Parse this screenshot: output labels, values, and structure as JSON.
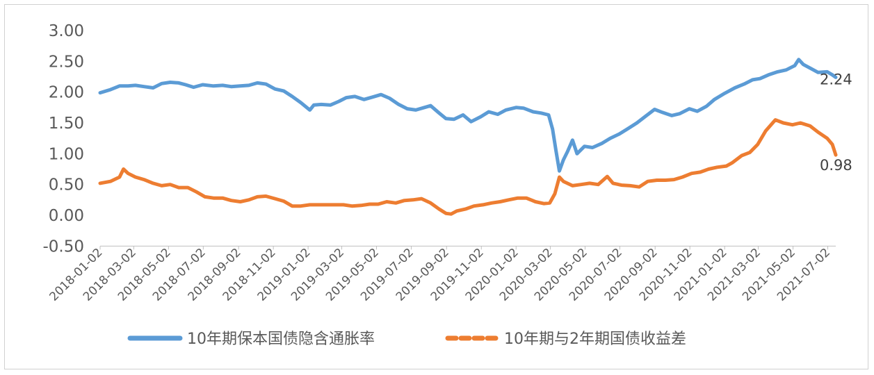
{
  "chart_data": {
    "type": "line",
    "title": "",
    "xlabel": "",
    "ylabel": "",
    "ylim": [
      -0.5,
      3.0
    ],
    "yticks": [
      "3.00",
      "2.50",
      "2.00",
      "1.50",
      "1.00",
      "0.50",
      "0.00",
      "-0.50"
    ],
    "xticks": [
      "2018-01-02",
      "2018-03-02",
      "2018-05-02",
      "2018-07-02",
      "2018-09-02",
      "2018-11-02",
      "2019-01-02",
      "2019-03-02",
      "2019-05-02",
      "2019-07-02",
      "2019-09-02",
      "2019-11-02",
      "2020-01-02",
      "2020-03-02",
      "2020-05-02",
      "2020-07-02",
      "2020-09-02",
      "2020-11-02",
      "2021-01-02",
      "2021-03-02",
      "2021-05-02",
      "2021-07-02"
    ],
    "grid": false,
    "legend_position": "bottom",
    "series": [
      {
        "name": "10年期保本国债隐含通胀率",
        "color": "#5B9BD5",
        "style": "solid",
        "end_label": "2.24",
        "points": [
          [
            "2018-01-02",
            1.99
          ],
          [
            "2018-01-20",
            2.04
          ],
          [
            "2018-02-05",
            2.1
          ],
          [
            "2018-02-20",
            2.1
          ],
          [
            "2018-03-05",
            2.11
          ],
          [
            "2018-03-20",
            2.09
          ],
          [
            "2018-04-05",
            2.07
          ],
          [
            "2018-04-20",
            2.14
          ],
          [
            "2018-05-05",
            2.16
          ],
          [
            "2018-05-20",
            2.15
          ],
          [
            "2018-06-01",
            2.12
          ],
          [
            "2018-06-15",
            2.08
          ],
          [
            "2018-07-01",
            2.12
          ],
          [
            "2018-07-20",
            2.1
          ],
          [
            "2018-08-05",
            2.11
          ],
          [
            "2018-08-20",
            2.09
          ],
          [
            "2018-09-05",
            2.1
          ],
          [
            "2018-09-20",
            2.11
          ],
          [
            "2018-10-05",
            2.15
          ],
          [
            "2018-10-20",
            2.13
          ],
          [
            "2018-11-05",
            2.05
          ],
          [
            "2018-11-20",
            2.02
          ],
          [
            "2018-12-05",
            1.93
          ],
          [
            "2018-12-20",
            1.83
          ],
          [
            "2019-01-05",
            1.71
          ],
          [
            "2019-01-12",
            1.79
          ],
          [
            "2019-01-25",
            1.8
          ],
          [
            "2019-02-10",
            1.79
          ],
          [
            "2019-02-25",
            1.85
          ],
          [
            "2019-03-10",
            1.91
          ],
          [
            "2019-03-25",
            1.93
          ],
          [
            "2019-04-10",
            1.88
          ],
          [
            "2019-04-25",
            1.92
          ],
          [
            "2019-05-10",
            1.96
          ],
          [
            "2019-05-25",
            1.9
          ],
          [
            "2019-06-10",
            1.8
          ],
          [
            "2019-06-25",
            1.73
          ],
          [
            "2019-07-10",
            1.71
          ],
          [
            "2019-07-25",
            1.75
          ],
          [
            "2019-08-05",
            1.78
          ],
          [
            "2019-08-20",
            1.66
          ],
          [
            "2019-09-01",
            1.57
          ],
          [
            "2019-09-15",
            1.56
          ],
          [
            "2019-10-01",
            1.63
          ],
          [
            "2019-10-15",
            1.52
          ],
          [
            "2019-11-01",
            1.6
          ],
          [
            "2019-11-15",
            1.68
          ],
          [
            "2019-12-01",
            1.64
          ],
          [
            "2019-12-15",
            1.71
          ],
          [
            "2020-01-02",
            1.75
          ],
          [
            "2020-01-15",
            1.74
          ],
          [
            "2020-02-01",
            1.68
          ],
          [
            "2020-02-15",
            1.66
          ],
          [
            "2020-02-28",
            1.63
          ],
          [
            "2020-03-06",
            1.4
          ],
          [
            "2020-03-12",
            1.05
          ],
          [
            "2020-03-18",
            0.72
          ],
          [
            "2020-03-25",
            0.9
          ],
          [
            "2020-04-01",
            1.03
          ],
          [
            "2020-04-10",
            1.22
          ],
          [
            "2020-04-18",
            1.0
          ],
          [
            "2020-05-01",
            1.12
          ],
          [
            "2020-05-15",
            1.1
          ],
          [
            "2020-06-01",
            1.17
          ],
          [
            "2020-06-15",
            1.25
          ],
          [
            "2020-07-01",
            1.32
          ],
          [
            "2020-07-15",
            1.4
          ],
          [
            "2020-08-01",
            1.5
          ],
          [
            "2020-08-15",
            1.6
          ],
          [
            "2020-09-01",
            1.72
          ],
          [
            "2020-09-15",
            1.67
          ],
          [
            "2020-10-01",
            1.62
          ],
          [
            "2020-10-15",
            1.65
          ],
          [
            "2020-11-01",
            1.73
          ],
          [
            "2020-11-15",
            1.69
          ],
          [
            "2020-12-01",
            1.77
          ],
          [
            "2020-12-15",
            1.88
          ],
          [
            "2021-01-02",
            1.98
          ],
          [
            "2021-01-20",
            2.07
          ],
          [
            "2021-02-05",
            2.13
          ],
          [
            "2021-02-20",
            2.2
          ],
          [
            "2021-03-05",
            2.22
          ],
          [
            "2021-03-20",
            2.28
          ],
          [
            "2021-04-05",
            2.33
          ],
          [
            "2021-04-20",
            2.36
          ],
          [
            "2021-05-05",
            2.43
          ],
          [
            "2021-05-12",
            2.53
          ],
          [
            "2021-05-20",
            2.45
          ],
          [
            "2021-06-01",
            2.39
          ],
          [
            "2021-06-15",
            2.32
          ],
          [
            "2021-07-01",
            2.33
          ],
          [
            "2021-07-10",
            2.28
          ],
          [
            "2021-07-16",
            2.24
          ]
        ]
      },
      {
        "name": "10年期与2年期国债收益差",
        "color": "#ED7D31",
        "style": "dashed",
        "end_label": "0.98",
        "points": [
          [
            "2018-01-02",
            0.52
          ],
          [
            "2018-01-20",
            0.55
          ],
          [
            "2018-02-05",
            0.62
          ],
          [
            "2018-02-12",
            0.75
          ],
          [
            "2018-02-20",
            0.68
          ],
          [
            "2018-03-05",
            0.62
          ],
          [
            "2018-03-20",
            0.58
          ],
          [
            "2018-04-05",
            0.52
          ],
          [
            "2018-04-20",
            0.48
          ],
          [
            "2018-05-05",
            0.5
          ],
          [
            "2018-05-20",
            0.45
          ],
          [
            "2018-06-05",
            0.45
          ],
          [
            "2018-06-20",
            0.38
          ],
          [
            "2018-07-05",
            0.3
          ],
          [
            "2018-07-20",
            0.28
          ],
          [
            "2018-08-05",
            0.28
          ],
          [
            "2018-08-20",
            0.24
          ],
          [
            "2018-09-05",
            0.22
          ],
          [
            "2018-09-20",
            0.25
          ],
          [
            "2018-10-05",
            0.3
          ],
          [
            "2018-10-20",
            0.31
          ],
          [
            "2018-11-05",
            0.27
          ],
          [
            "2018-11-20",
            0.23
          ],
          [
            "2018-12-05",
            0.15
          ],
          [
            "2018-12-20",
            0.15
          ],
          [
            "2019-01-05",
            0.17
          ],
          [
            "2019-01-20",
            0.17
          ],
          [
            "2019-02-05",
            0.17
          ],
          [
            "2019-02-20",
            0.17
          ],
          [
            "2019-03-05",
            0.17
          ],
          [
            "2019-03-20",
            0.15
          ],
          [
            "2019-04-05",
            0.16
          ],
          [
            "2019-04-20",
            0.18
          ],
          [
            "2019-05-05",
            0.18
          ],
          [
            "2019-05-20",
            0.22
          ],
          [
            "2019-06-05",
            0.2
          ],
          [
            "2019-06-20",
            0.24
          ],
          [
            "2019-07-05",
            0.25
          ],
          [
            "2019-07-20",
            0.27
          ],
          [
            "2019-08-05",
            0.2
          ],
          [
            "2019-08-20",
            0.1
          ],
          [
            "2019-09-01",
            0.03
          ],
          [
            "2019-09-10",
            0.02
          ],
          [
            "2019-09-20",
            0.07
          ],
          [
            "2019-10-05",
            0.1
          ],
          [
            "2019-10-20",
            0.15
          ],
          [
            "2019-11-05",
            0.17
          ],
          [
            "2019-11-20",
            0.2
          ],
          [
            "2019-12-05",
            0.22
          ],
          [
            "2019-12-20",
            0.25
          ],
          [
            "2020-01-05",
            0.28
          ],
          [
            "2020-01-20",
            0.28
          ],
          [
            "2020-02-05",
            0.22
          ],
          [
            "2020-02-20",
            0.19
          ],
          [
            "2020-03-01",
            0.2
          ],
          [
            "2020-03-10",
            0.35
          ],
          [
            "2020-03-18",
            0.62
          ],
          [
            "2020-03-25",
            0.55
          ],
          [
            "2020-04-10",
            0.48
          ],
          [
            "2020-04-25",
            0.5
          ],
          [
            "2020-05-10",
            0.52
          ],
          [
            "2020-05-25",
            0.5
          ],
          [
            "2020-06-10",
            0.63
          ],
          [
            "2020-06-20",
            0.52
          ],
          [
            "2020-07-05",
            0.49
          ],
          [
            "2020-07-20",
            0.48
          ],
          [
            "2020-08-05",
            0.46
          ],
          [
            "2020-08-20",
            0.55
          ],
          [
            "2020-09-05",
            0.57
          ],
          [
            "2020-09-20",
            0.57
          ],
          [
            "2020-10-05",
            0.58
          ],
          [
            "2020-10-20",
            0.62
          ],
          [
            "2020-11-05",
            0.68
          ],
          [
            "2020-11-20",
            0.7
          ],
          [
            "2020-12-05",
            0.75
          ],
          [
            "2020-12-20",
            0.78
          ],
          [
            "2021-01-05",
            0.8
          ],
          [
            "2021-01-15",
            0.85
          ],
          [
            "2021-02-01",
            0.97
          ],
          [
            "2021-02-15",
            1.02
          ],
          [
            "2021-03-01",
            1.15
          ],
          [
            "2021-03-15",
            1.37
          ],
          [
            "2021-04-01",
            1.55
          ],
          [
            "2021-04-15",
            1.5
          ],
          [
            "2021-05-01",
            1.47
          ],
          [
            "2021-05-15",
            1.5
          ],
          [
            "2021-06-01",
            1.45
          ],
          [
            "2021-06-15",
            1.35
          ],
          [
            "2021-07-01",
            1.25
          ],
          [
            "2021-07-10",
            1.15
          ],
          [
            "2021-07-16",
            0.98
          ]
        ]
      }
    ]
  }
}
